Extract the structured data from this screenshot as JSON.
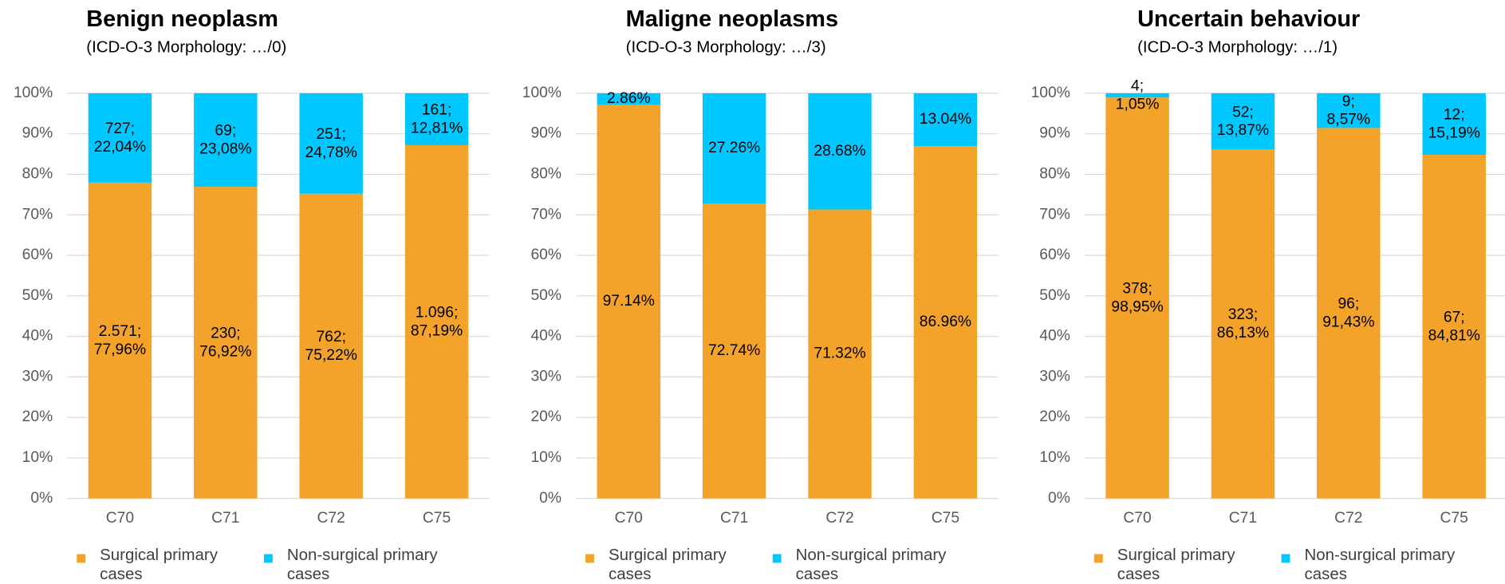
{
  "chart_data": [
    {
      "type": "stacked_bar",
      "title": "Benign neoplasm",
      "subtitle": "(ICD-O-3 Morphology: …/0)",
      "categories": [
        "C70",
        "C71",
        "C72",
        "C75"
      ],
      "series": [
        {
          "name": "Surgical primary cases",
          "color": "#f4a32a",
          "values": [
            77.96,
            76.92,
            75.22,
            87.19
          ],
          "value_labels": [
            [
              "2.571;",
              "77,96%"
            ],
            [
              "230;",
              "76,92%"
            ],
            [
              "762;",
              "75,22%"
            ],
            [
              "1.096;",
              "87,19%"
            ]
          ]
        },
        {
          "name": "Non-surgical primary cases",
          "color": "#00c8ff",
          "values": [
            22.04,
            23.08,
            24.78,
            12.81
          ],
          "value_labels": [
            [
              "727;",
              "22,04%"
            ],
            [
              "69;",
              "23,08%"
            ],
            [
              "251;",
              "24,78%"
            ],
            [
              "161;",
              "12,81%"
            ]
          ]
        }
      ],
      "ylim": [
        0,
        100
      ],
      "yticks": [
        {
          "value": 0,
          "label": "0%"
        },
        {
          "value": 10,
          "label": "10%"
        },
        {
          "value": 20,
          "label": "20%"
        },
        {
          "value": 30,
          "label": "30%"
        },
        {
          "value": 40,
          "label": "40%"
        },
        {
          "value": 50,
          "label": "50%"
        },
        {
          "value": 60,
          "label": "60%"
        },
        {
          "value": 70,
          "label": "70%"
        },
        {
          "value": 80,
          "label": "80%"
        },
        {
          "value": 90,
          "label": "90%"
        },
        {
          "value": 100,
          "label": "100%"
        }
      ],
      "grid": true,
      "legend": "bottom"
    },
    {
      "type": "stacked_bar",
      "title": "Maligne neoplasms",
      "subtitle": "(ICD-O-3 Morphology: …/3)",
      "categories": [
        "C70",
        "C71",
        "C72",
        "C75"
      ],
      "series": [
        {
          "name": "Surgical primary cases",
          "color": "#f4a32a",
          "values": [
            97.14,
            72.74,
            71.32,
            86.96
          ],
          "value_labels": [
            "97.14%",
            "72.74%",
            "71.32%",
            "86.96%"
          ]
        },
        {
          "name": "Non-surgical primary cases",
          "color": "#00c8ff",
          "values": [
            2.86,
            27.26,
            28.68,
            13.04
          ],
          "value_labels": [
            "2.86%",
            "27.26%",
            "28.68%",
            "13.04%"
          ]
        }
      ],
      "ylim": [
        0,
        100
      ],
      "yticks": [
        {
          "value": 0,
          "label": "0%"
        },
        {
          "value": 10,
          "label": "10%"
        },
        {
          "value": 20,
          "label": "20%"
        },
        {
          "value": 30,
          "label": "30%"
        },
        {
          "value": 40,
          "label": "40%"
        },
        {
          "value": 50,
          "label": "50%"
        },
        {
          "value": 60,
          "label": "60%"
        },
        {
          "value": 70,
          "label": "70%"
        },
        {
          "value": 80,
          "label": "80%"
        },
        {
          "value": 90,
          "label": "90%"
        },
        {
          "value": 100,
          "label": "100%"
        }
      ],
      "grid": true,
      "legend": "bottom"
    },
    {
      "type": "stacked_bar",
      "title": "Uncertain behaviour",
      "subtitle": "(ICD-O-3 Morphology: …/1)",
      "categories": [
        "C70",
        "C71",
        "C72",
        "C75"
      ],
      "series": [
        {
          "name": "Surgical primary cases",
          "color": "#f4a32a",
          "values": [
            98.95,
            86.13,
            91.43,
            84.81
          ],
          "value_labels": [
            [
              "378;",
              "98,95%"
            ],
            [
              "323;",
              "86,13%"
            ],
            [
              "96;",
              "91,43%"
            ],
            [
              "67;",
              "84,81%"
            ]
          ]
        },
        {
          "name": "Non-surgical primary cases",
          "color": "#00c8ff",
          "values": [
            1.05,
            13.87,
            8.57,
            15.19
          ],
          "value_labels": [
            [
              "4;",
              "1,05%"
            ],
            [
              "52;",
              "13,87%"
            ],
            [
              "9;",
              "8,57%"
            ],
            [
              "12;",
              "15,19%"
            ]
          ]
        }
      ],
      "ylim": [
        0,
        100
      ],
      "yticks": [
        {
          "value": 0,
          "label": "0%"
        },
        {
          "value": 10,
          "label": "10%"
        },
        {
          "value": 20,
          "label": "20%"
        },
        {
          "value": 30,
          "label": "30%"
        },
        {
          "value": 40,
          "label": "40%"
        },
        {
          "value": 50,
          "label": "50%"
        },
        {
          "value": 60,
          "label": "60%"
        },
        {
          "value": 70,
          "label": "70%"
        },
        {
          "value": 80,
          "label": "80%"
        },
        {
          "value": 90,
          "label": "90%"
        },
        {
          "value": 100,
          "label": "100%"
        }
      ],
      "grid": true,
      "legend": "bottom"
    }
  ]
}
